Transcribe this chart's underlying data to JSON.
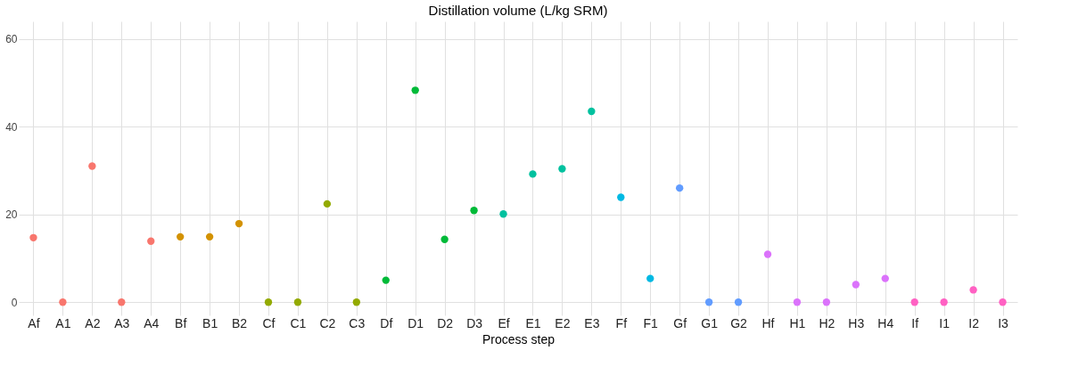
{
  "chart_data": {
    "type": "scatter",
    "title": "Distillation volume (L/kg SRM)",
    "xlabel": "Process step",
    "categories": [
      "Af",
      "A1",
      "A2",
      "A3",
      "A4",
      "Bf",
      "B1",
      "B2",
      "Cf",
      "C1",
      "C2",
      "C3",
      "Df",
      "D1",
      "D2",
      "D3",
      "Ef",
      "E1",
      "E2",
      "E3",
      "Ff",
      "F1",
      "Gf",
      "G1",
      "G2",
      "Hf",
      "H1",
      "H2",
      "H3",
      "H4",
      "If",
      "I1",
      "I2",
      "I3"
    ],
    "values": [
      14.7,
      0,
      31,
      0,
      13.9,
      14.9,
      14.9,
      17.9,
      0,
      0,
      22.4,
      0,
      5,
      48.3,
      14.3,
      20.9,
      20.1,
      29.2,
      30.4,
      43.5,
      23.9,
      5.4,
      26,
      0,
      0,
      10.9,
      0,
      0,
      4,
      5.4,
      0,
      0,
      2.8,
      0
    ],
    "colors": [
      "#f8766d",
      "#f8766d",
      "#f8766d",
      "#f8766d",
      "#f8766d",
      "#d39200",
      "#d39200",
      "#d39200",
      "#93aa00",
      "#93aa00",
      "#93aa00",
      "#93aa00",
      "#00ba38",
      "#00ba38",
      "#00ba38",
      "#00ba38",
      "#00c19f",
      "#00c19f",
      "#00c19f",
      "#00c19f",
      "#00b9e3",
      "#00b9e3",
      "#619cff",
      "#619cff",
      "#619cff",
      "#db72fb",
      "#db72fb",
      "#db72fb",
      "#db72fb",
      "#db72fb",
      "#ff61c3",
      "#ff61c3",
      "#ff61c3",
      "#ff61c3"
    ],
    "ylim": [
      -3,
      64
    ],
    "yticks": [
      0,
      20,
      40,
      60
    ],
    "grid": true,
    "marker": "circle"
  }
}
